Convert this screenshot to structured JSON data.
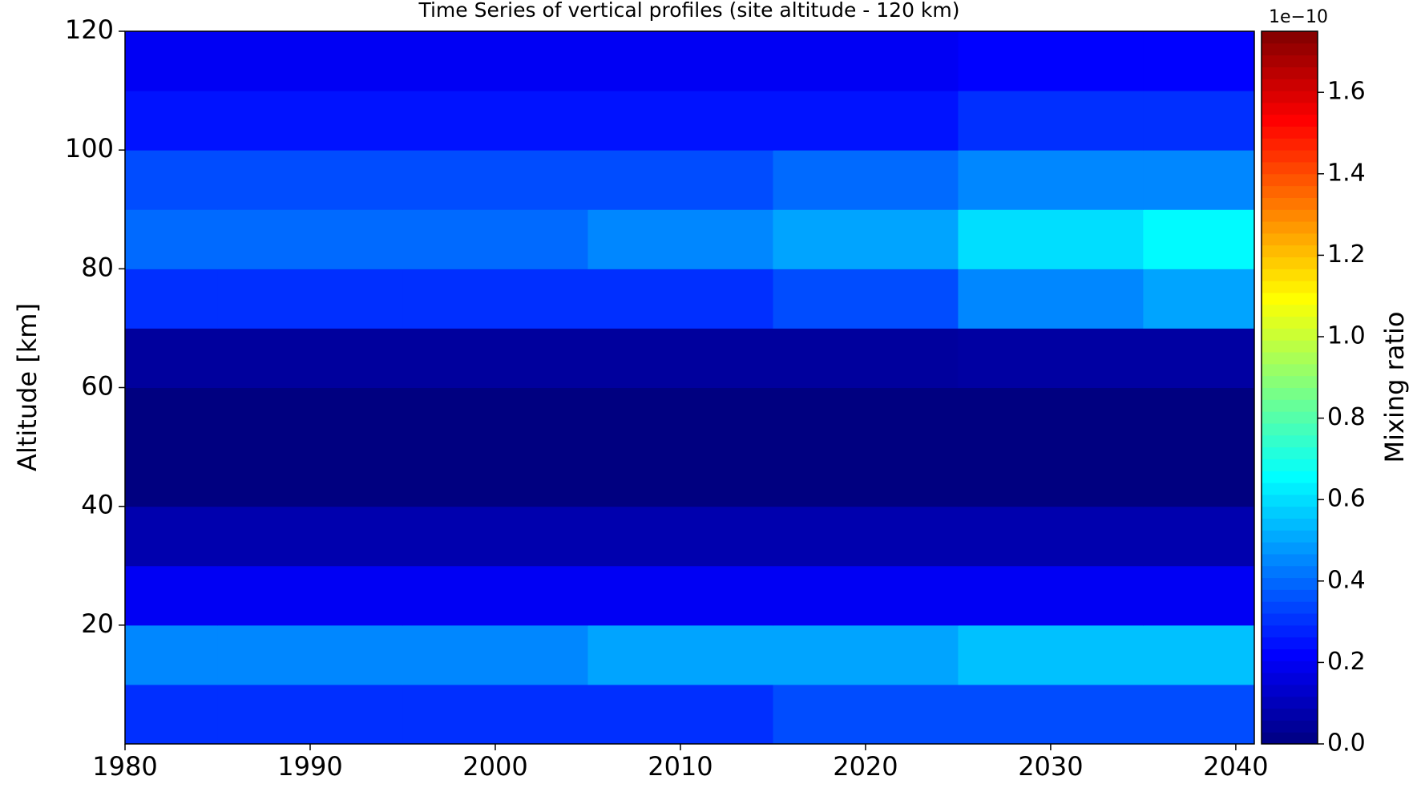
{
  "chart_data": {
    "type": "heatmap",
    "title": "Time Series of vertical profiles (site altitude - 120 km)",
    "y_label": "Altitude [km]",
    "colorbar_label": "Mixing ratio",
    "colorbar_offset": "1e−10",
    "colormap": "jet",
    "x": [
      1980,
      1990,
      2000,
      2010,
      2020,
      2030,
      2040
    ],
    "y": [
      5,
      15,
      25,
      35,
      45,
      55,
      65,
      75,
      85,
      95,
      105,
      115
    ],
    "z": [
      [
        0.3,
        0.3,
        0.3,
        0.3,
        0.35,
        0.35,
        0.35
      ],
      [
        0.45,
        0.45,
        0.45,
        0.5,
        0.5,
        0.55,
        0.55
      ],
      [
        0.2,
        0.2,
        0.2,
        0.2,
        0.2,
        0.2,
        0.2
      ],
      [
        0.08,
        0.08,
        0.08,
        0.08,
        0.08,
        0.08,
        0.08
      ],
      [
        0.0,
        0.0,
        0.0,
        0.0,
        0.0,
        0.0,
        0.0
      ],
      [
        0.0,
        0.0,
        0.0,
        0.0,
        0.0,
        0.0,
        0.0
      ],
      [
        0.05,
        0.05,
        0.05,
        0.05,
        0.05,
        0.06,
        0.06
      ],
      [
        0.3,
        0.3,
        0.3,
        0.3,
        0.35,
        0.45,
        0.5
      ],
      [
        0.4,
        0.4,
        0.4,
        0.45,
        0.5,
        0.6,
        0.65
      ],
      [
        0.35,
        0.35,
        0.35,
        0.35,
        0.4,
        0.45,
        0.45
      ],
      [
        0.25,
        0.25,
        0.25,
        0.25,
        0.25,
        0.3,
        0.3
      ],
      [
        0.2,
        0.2,
        0.2,
        0.2,
        0.2,
        0.22,
        0.22
      ]
    ],
    "xlim": [
      1980,
      2041
    ],
    "xticks": [
      1980,
      1990,
      2000,
      2010,
      2020,
      2030,
      2040
    ],
    "ylim": [
      0,
      120
    ],
    "yticks": [
      20,
      40,
      60,
      80,
      100,
      120
    ],
    "zlim": [
      0,
      1.75
    ],
    "zticks": [
      {
        "value": 0,
        "label": "0.0"
      },
      0.2,
      0.4,
      0.6,
      0.8,
      {
        "value": 1,
        "label": "1.0"
      },
      1.2,
      1.4,
      1.6
    ]
  }
}
